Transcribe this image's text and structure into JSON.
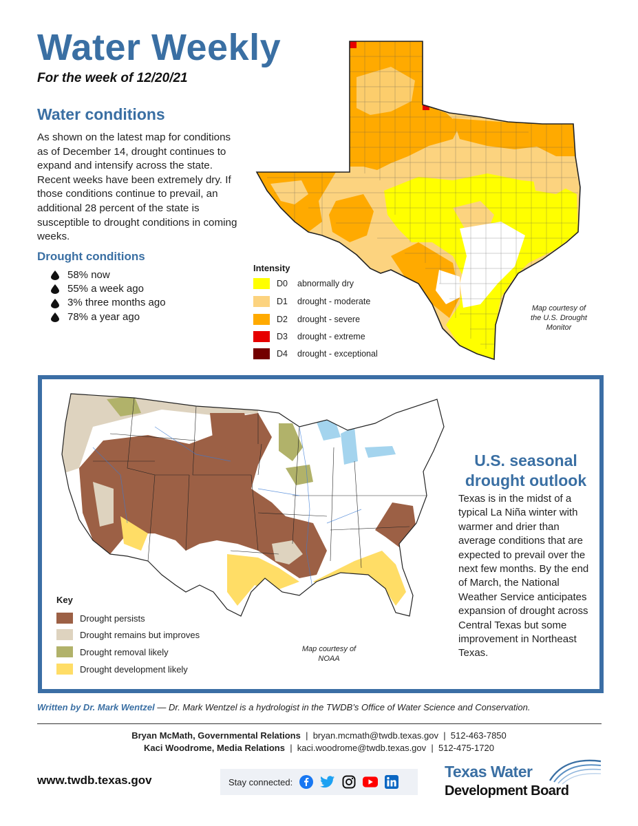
{
  "header": {
    "title": "Water Weekly",
    "subtitle": "For the week of 12/20/21"
  },
  "water_conditions": {
    "heading": "Water conditions",
    "body": "As shown on the latest map for conditions as of December 14, drought continues to expand and intensify across the state. Recent weeks have been extremely dry. If those conditions continue to prevail, an additional 28 percent of the state is susceptible to drought conditions in coming weeks."
  },
  "drought_conditions": {
    "heading": "Drought conditions",
    "items": [
      "58% now",
      "55% a week ago",
      "3% three months ago",
      "78% a year ago"
    ],
    "icon": "water-drop-icon"
  },
  "texas_map": {
    "legend_title": "Intensity",
    "legend": [
      {
        "code": "D0",
        "label": "abnormally dry",
        "color": "#ffff00"
      },
      {
        "code": "D1",
        "label": "drought - moderate",
        "color": "#fcd37f"
      },
      {
        "code": "D2",
        "label": "drought - severe",
        "color": "#ffaa00"
      },
      {
        "code": "D3",
        "label": "drought - extreme",
        "color": "#e60000"
      },
      {
        "code": "D4",
        "label": "drought - exceptional",
        "color": "#730000"
      }
    ],
    "credit_line1": "Map courtesy of",
    "credit_line2": "the U.S. Drought",
    "credit_line3": "Monitor"
  },
  "outlook": {
    "heading_line1": "U.S. seasonal",
    "heading_line2": "drought outlook",
    "body": "Texas is in the midst of a typical La Niña winter with warmer and drier than average conditions that are expected to prevail over the next few months. By the end of March, the National Weather Service anticipates expansion of drought across Central Texas but some improvement in Northeast Texas.",
    "key_title": "Key",
    "key": [
      {
        "label": "Drought persists",
        "color": "#9c6045"
      },
      {
        "label": "Drought remains but improves",
        "color": "#ded3bf"
      },
      {
        "label": "Drought removal likely",
        "color": "#b1b26a"
      },
      {
        "label": "Drought development likely",
        "color": "#ffdd66"
      }
    ],
    "credit_line1": "Map courtesy of",
    "credit_line2": "NOAA"
  },
  "byline": {
    "author": "Written by Dr. Mark Wentzel",
    "bio": " — Dr. Mark Wentzel is a hydrologist in the TWDB’s Office of Water Science and Conservation."
  },
  "contacts": [
    {
      "name": "Bryan McMath, Governmental Relations",
      "email": "bryan.mcmath@twdb.texas.gov",
      "phone": "512-463-7850"
    },
    {
      "name": "Kaci Woodrome, Media Relations",
      "email": "kaci.woodrome@twdb.texas.gov",
      "phone": "512-475-1720"
    }
  ],
  "footer": {
    "website": "www.twdb.texas.gov",
    "stay_connected": "Stay connected:",
    "social_icons": [
      "facebook-icon",
      "twitter-icon",
      "instagram-icon",
      "youtube-icon",
      "linkedin-icon"
    ],
    "logo_line1": "Texas Water",
    "logo_line2": "Development Board"
  },
  "colors": {
    "accent": "#3a6fa3",
    "panel_border": "#3b6ea5"
  }
}
